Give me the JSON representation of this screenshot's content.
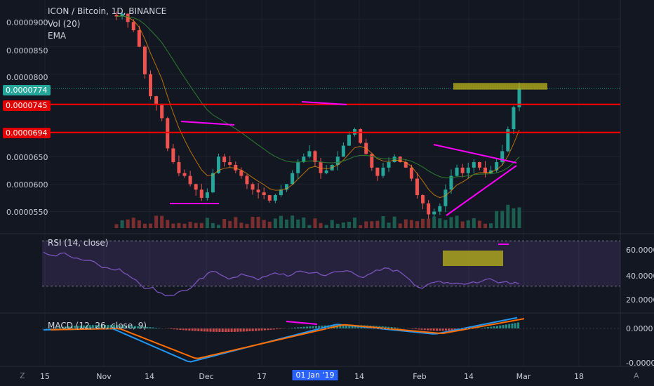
{
  "header": {
    "title": "ICON / Bitcoin, 1D, BINANCE",
    "vol_label": "Vol (20)",
    "ema_label": "EMA"
  },
  "price_axis": {
    "ticks": [
      "0.0000900",
      "0.0000850",
      "0.0000800",
      "0.0000650",
      "0.0000600",
      "0.0000550"
    ],
    "tick_values": [
      9e-05,
      8.5e-05,
      8e-05,
      6.5e-05,
      6e-05,
      5.5e-05
    ],
    "last_price": "0.0000774",
    "resistance_1": "0.0000745",
    "resistance_2": "0.0000694",
    "last_price_value": 7.74e-05,
    "resistance_1_value": 7.45e-05,
    "resistance_2_value": 6.94e-05
  },
  "rsi": {
    "label": "RSI (14, close)",
    "ticks": [
      "60.0000",
      "40.0000",
      "20.0000"
    ],
    "tick_values": [
      60,
      40,
      20
    ],
    "bands": [
      70,
      30
    ]
  },
  "macd": {
    "label": "MACD (12, 26, close, 9)",
    "ticks": [
      "0.0000",
      "-0.0000"
    ]
  },
  "time_axis": {
    "ticks": [
      "15",
      "Nov",
      "14",
      "Dec",
      "17",
      "01 Jan '19",
      "14",
      "Feb",
      "14",
      "Mar",
      "18"
    ],
    "highlight": "01 Jan '19"
  },
  "colors": {
    "background": "#131722",
    "up": "#26a69a",
    "down": "#ef5350",
    "resistance": "#ff0000",
    "trendline": "#ff00ff",
    "zone": "#bcb619",
    "rsi_line": "#7e57c2",
    "macd": "#2196f3",
    "signal": "#ff6d00",
    "hist_up": "#26a69a",
    "hist_down": "#ef5350",
    "hist_pale": "#d1d4dc"
  },
  "chart_data": {
    "type": "candlestick",
    "title": "ICON / Bitcoin, 1D, BINANCE",
    "x_range": [
      "Oct 14",
      "Mar 22"
    ],
    "ylim": [
      5.2e-05,
      9.35e-05
    ],
    "close": [
      9.05e-05,
      9.1e-05,
      8.95e-05,
      8.8e-05,
      8.5e-05,
      8e-05,
      7.6e-05,
      7.45e-05,
      7.2e-05,
      6.65e-05,
      6.4e-05,
      6.2e-05,
      6.15e-05,
      6e-05,
      5.9e-05,
      5.75e-05,
      5.85e-05,
      6.2e-05,
      6.5e-05,
      6.4e-05,
      6.35e-05,
      6.25e-05,
      6.15e-05,
      6e-05,
      5.9e-05,
      5.85e-05,
      5.8e-05,
      5.7e-05,
      5.8e-05,
      5.9e-05,
      6e-05,
      6.2e-05,
      6.4e-05,
      6.5e-05,
      6.6e-05,
      6.4e-05,
      6.2e-05,
      6.25e-05,
      6.35e-05,
      6.5e-05,
      6.7e-05,
      6.9e-05,
      7e-05,
      6.75e-05,
      6.55e-05,
      6.3e-05,
      6.15e-05,
      6.3e-05,
      6.4e-05,
      6.5e-05,
      6.4e-05,
      6.3e-05,
      6.1e-05,
      5.8e-05,
      5.65e-05,
      5.45e-05,
      5.5e-05,
      5.6e-05,
      5.9e-05,
      6.15e-05,
      6.3e-05,
      6.2e-05,
      6.3e-05,
      6.4e-05,
      6.3e-05,
      6.2e-05,
      6.25e-05,
      6.4e-05,
      6.6e-05,
      7e-05,
      7.4e-05,
      7.74e-05
    ],
    "series": [
      {
        "name": "Vol (20)",
        "type": "histogram"
      },
      {
        "name": "EMA",
        "type": "line"
      },
      {
        "name": "RSI (14, close)",
        "type": "line",
        "ylim": [
          10,
          72
        ]
      },
      {
        "name": "MACD (12, 26, close, 9)",
        "type": "line+histogram"
      }
    ],
    "annotations": [
      {
        "type": "horizontal_line",
        "price": 7.45e-05
      },
      {
        "type": "horizontal_line",
        "price": 6.94e-05
      },
      {
        "type": "zone",
        "price_range": [
          7.72e-05,
          7.84e-05
        ]
      }
    ]
  }
}
